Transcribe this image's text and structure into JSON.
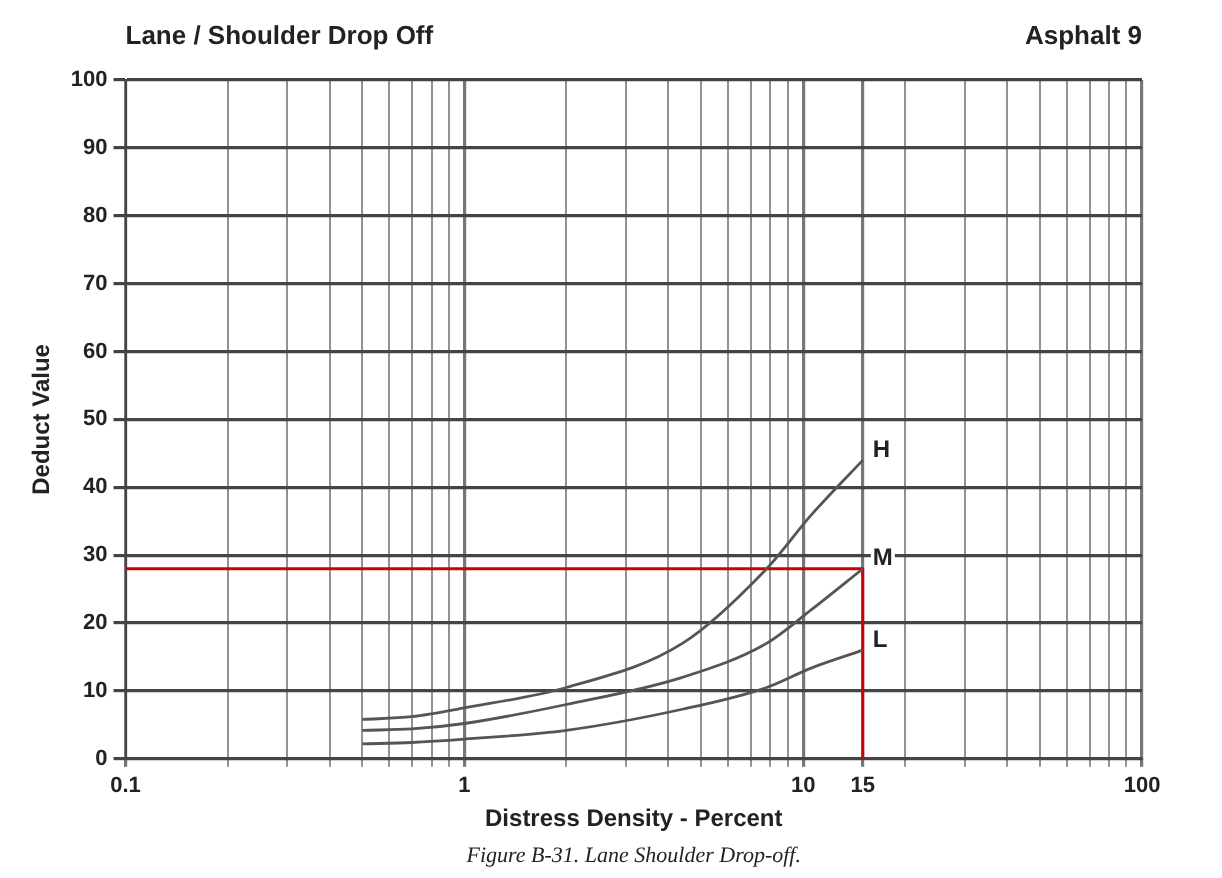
{
  "chart_data": {
    "type": "line",
    "title": "Lane / Shoulder Drop Off",
    "subtitle": "Asphalt 9",
    "xlabel": "Distress Density - Percent",
    "ylabel": "Deduct Value",
    "annotations": [
      "Figure B-31. Lane Shoulder Drop-off."
    ],
    "log": "x",
    "grid": true,
    "legend": false,
    "marker": "none",
    "line_style": "solid",
    "xlim": [
      0.1,
      100
    ],
    "ylim": [
      0,
      100
    ],
    "xticks": [
      0.1,
      {
        "value": 0.2,
        "label": null
      },
      {
        "value": 0.3,
        "label": null
      },
      {
        "value": 0.4,
        "label": null
      },
      {
        "value": 0.5,
        "label": null
      },
      {
        "value": 0.6,
        "label": null
      },
      {
        "value": 0.7,
        "label": null
      },
      {
        "value": 0.8,
        "label": null
      },
      {
        "value": 0.9,
        "label": null
      },
      1,
      {
        "value": 2,
        "label": null
      },
      {
        "value": 3,
        "label": null
      },
      {
        "value": 4,
        "label": null
      },
      {
        "value": 5,
        "label": null
      },
      {
        "value": 6,
        "label": null
      },
      {
        "value": 7,
        "label": null
      },
      {
        "value": 8,
        "label": null
      },
      {
        "value": 9,
        "label": null
      },
      10,
      15,
      {
        "value": 20,
        "label": null
      },
      {
        "value": 30,
        "label": null
      },
      {
        "value": 40,
        "label": null
      },
      {
        "value": 50,
        "label": null
      },
      {
        "value": 60,
        "label": null
      },
      {
        "value": 70,
        "label": null
      },
      {
        "value": 80,
        "label": null
      },
      {
        "value": 90,
        "label": null
      },
      100
    ],
    "yticks": [
      0,
      10,
      20,
      30,
      40,
      50,
      60,
      70,
      80,
      90,
      100
    ],
    "series": [
      {
        "name": "H",
        "color": "#555555",
        "x": [
          0.5,
          0.7,
          1,
          2,
          4.4,
          7.8,
          10.6,
          15
        ],
        "values": [
          5.8,
          6.2,
          7.5,
          10.5,
          17,
          28,
          36,
          44
        ]
      },
      {
        "name": "M",
        "color": "#555555",
        "x": [
          0.5,
          0.7,
          1,
          2,
          4.4,
          7.8,
          10.6,
          15
        ],
        "values": [
          4.2,
          4.4,
          5.2,
          8,
          12,
          17,
          22,
          28
        ]
      },
      {
        "name": "L",
        "color": "#555555",
        "x": [
          0.5,
          0.7,
          1,
          2,
          4.4,
          7.8,
          10.6,
          15
        ],
        "values": [
          2.2,
          2.4,
          2.9,
          4.2,
          7.3,
          10.5,
          13.4,
          16
        ]
      },
      {
        "color": "#cc0000",
        "x": [
          0.1,
          15,
          15
        ],
        "values": [
          28,
          28,
          0
        ]
      }
    ]
  }
}
